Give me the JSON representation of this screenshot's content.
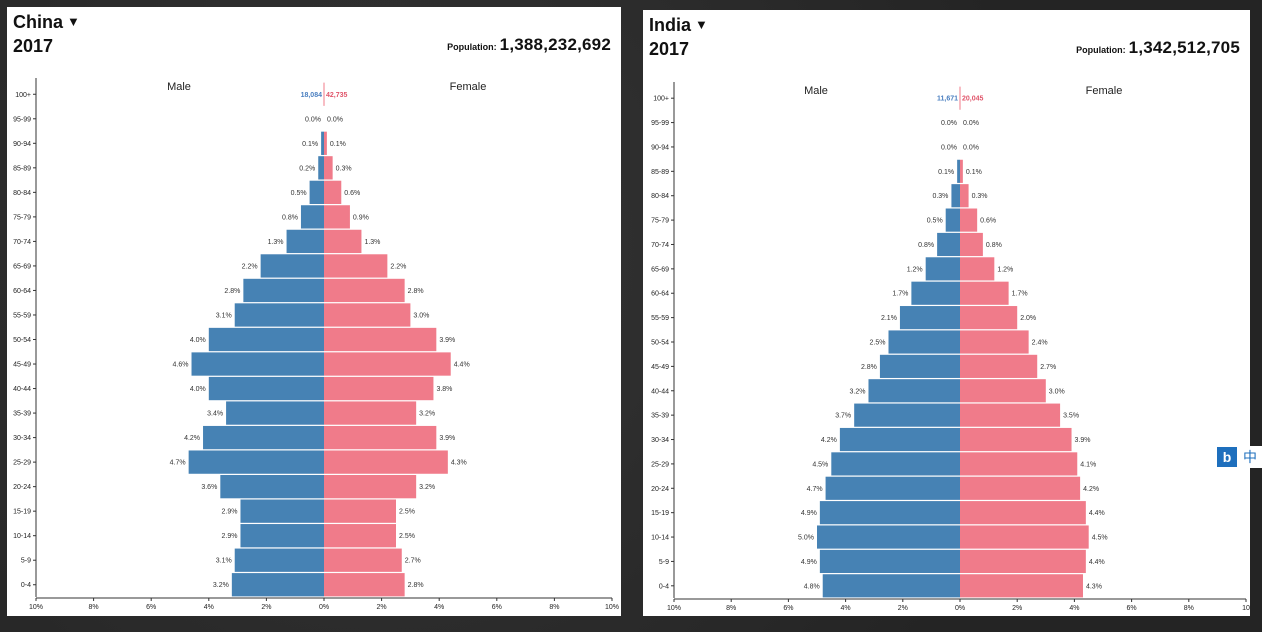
{
  "chart_data": [
    {
      "type": "bar",
      "orientation": "population-pyramid",
      "country": "China",
      "year": "2017",
      "population_label": "Population:",
      "population": "1,388,232,692",
      "male_label": "Male",
      "female_label": "Female",
      "categories": [
        "100+",
        "95-99",
        "90-94",
        "85-89",
        "80-84",
        "75-79",
        "70-74",
        "65-69",
        "60-64",
        "55-59",
        "50-54",
        "45-49",
        "40-44",
        "35-39",
        "30-34",
        "25-29",
        "20-24",
        "15-19",
        "10-14",
        "5-9",
        "0-4"
      ],
      "top_counts": {
        "male": "18,084",
        "female": "42,735"
      },
      "series": [
        {
          "name": "Male",
          "color": "#4682b4",
          "values": [
            0.0,
            0.0,
            0.1,
            0.2,
            0.5,
            0.8,
            1.3,
            2.2,
            2.8,
            3.1,
            4.0,
            4.6,
            4.0,
            3.4,
            4.2,
            4.7,
            3.6,
            2.9,
            2.9,
            3.1,
            3.2
          ],
          "labels": [
            "",
            "0.0%",
            "0.1%",
            "0.2%",
            "0.5%",
            "0.8%",
            "1.3%",
            "2.2%",
            "2.8%",
            "3.1%",
            "4.0%",
            "4.6%",
            "4.0%",
            "3.4%",
            "4.2%",
            "4.7%",
            "3.6%",
            "2.9%",
            "2.9%",
            "3.1%",
            "3.2%"
          ]
        },
        {
          "name": "Female",
          "color": "#f07b8a",
          "values": [
            0.0,
            0.0,
            0.1,
            0.3,
            0.6,
            0.9,
            1.3,
            2.2,
            2.8,
            3.0,
            3.9,
            4.4,
            3.8,
            3.2,
            3.9,
            4.3,
            3.2,
            2.5,
            2.5,
            2.7,
            2.8
          ],
          "labels": [
            "",
            "0.0%",
            "0.1%",
            "0.3%",
            "0.6%",
            "0.9%",
            "1.3%",
            "2.2%",
            "2.8%",
            "3.0%",
            "3.9%",
            "4.4%",
            "3.8%",
            "3.2%",
            "3.9%",
            "4.3%",
            "3.2%",
            "2.5%",
            "2.5%",
            "2.7%",
            "2.8%"
          ]
        }
      ],
      "x_ticks": [
        "10%",
        "8%",
        "6%",
        "4%",
        "2%",
        "0%",
        "2%",
        "4%",
        "6%",
        "8%",
        "10%"
      ],
      "xlim": [
        -10,
        10
      ]
    },
    {
      "type": "bar",
      "orientation": "population-pyramid",
      "country": "India",
      "year": "2017",
      "population_label": "Population:",
      "population": "1,342,512,705",
      "male_label": "Male",
      "female_label": "Female",
      "categories": [
        "100+",
        "95-99",
        "90-94",
        "85-89",
        "80-84",
        "75-79",
        "70-74",
        "65-69",
        "60-64",
        "55-59",
        "50-54",
        "45-49",
        "40-44",
        "35-39",
        "30-34",
        "25-29",
        "20-24",
        "15-19",
        "10-14",
        "5-9",
        "0-4"
      ],
      "top_counts": {
        "male": "11,671",
        "female": "20,045"
      },
      "series": [
        {
          "name": "Male",
          "color": "#4682b4",
          "values": [
            0.0,
            0.0,
            0.0,
            0.1,
            0.3,
            0.5,
            0.8,
            1.2,
            1.7,
            2.1,
            2.5,
            2.8,
            3.2,
            3.7,
            4.2,
            4.5,
            4.7,
            4.9,
            5.0,
            4.9,
            4.8
          ],
          "labels": [
            "",
            "0.0%",
            "0.0%",
            "0.1%",
            "0.3%",
            "0.5%",
            "0.8%",
            "1.2%",
            "1.7%",
            "2.1%",
            "2.5%",
            "2.8%",
            "3.2%",
            "3.7%",
            "4.2%",
            "4.5%",
            "4.7%",
            "4.9%",
            "5.0%",
            "4.9%",
            "4.8%"
          ]
        },
        {
          "name": "Female",
          "color": "#f07b8a",
          "values": [
            0.0,
            0.0,
            0.0,
            0.1,
            0.3,
            0.6,
            0.8,
            1.2,
            1.7,
            2.0,
            2.4,
            2.7,
            3.0,
            3.5,
            3.9,
            4.1,
            4.2,
            4.4,
            4.5,
            4.4,
            4.3
          ],
          "labels": [
            "",
            "0.0%",
            "0.0%",
            "0.1%",
            "0.3%",
            "0.6%",
            "0.8%",
            "1.2%",
            "1.7%",
            "2.0%",
            "2.4%",
            "2.7%",
            "3.0%",
            "3.5%",
            "3.9%",
            "4.1%",
            "4.2%",
            "4.4%",
            "4.5%",
            "4.4%",
            "4.3%"
          ]
        }
      ],
      "x_ticks": [
        "10%",
        "8%",
        "6%",
        "4%",
        "2%",
        "0%",
        "2%",
        "4%",
        "6%",
        "8%",
        "10"
      ],
      "xlim": [
        -10,
        10
      ]
    }
  ],
  "widget": {
    "logo": "b",
    "lang": "中"
  }
}
